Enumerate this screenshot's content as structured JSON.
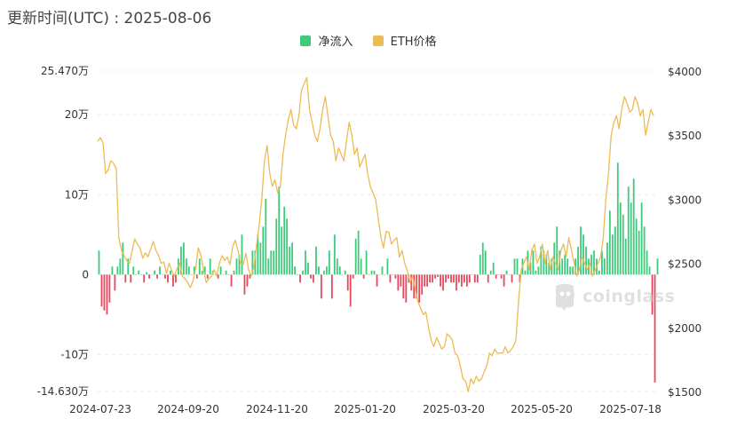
{
  "header": {
    "title": "更新时间(UTC) : 2025-08-06"
  },
  "legend": [
    {
      "label": "净流入",
      "color": "#3fc97b"
    },
    {
      "label": "ETH价格",
      "color": "#eabc55"
    }
  ],
  "watermark": {
    "text": "coinglass",
    "icon": "coinglass-logo-icon"
  },
  "colors": {
    "positive": "#3fc97b",
    "negative": "#e8485d",
    "line": "#eabc55"
  },
  "chart_data": {
    "type": "bar",
    "title": "",
    "left_axis": {
      "min": -14.63,
      "max": 25.47,
      "ticks": [
        "25.470万",
        "20万",
        "10万",
        "0",
        "-10万",
        "-14.630万"
      ],
      "tick_values": [
        25.47,
        20,
        10,
        0,
        -10,
        -14.63
      ]
    },
    "right_axis": {
      "min": 1500,
      "max": 4000,
      "ticks": [
        "$4000",
        "$3500",
        "$3000",
        "$2500",
        "$2000",
        "$1500"
      ],
      "tick_values": [
        4000,
        3500,
        3000,
        2500,
        2000,
        1500
      ]
    },
    "x_ticks": [
      "2024-07-23",
      "2024-09-20",
      "2024-11-20",
      "2025-01-20",
      "2025-03-20",
      "2025-05-20",
      "2025-07-18"
    ],
    "grid": true,
    "legend_position": "top-center",
    "series": [
      {
        "name": "净流入",
        "kind": "bar",
        "values": [
          3,
          -4,
          -4.5,
          -5,
          -3.5,
          1,
          -2,
          1,
          2,
          4,
          -1,
          2,
          -1,
          1,
          0,
          0.5,
          0,
          -1,
          0.3,
          -0.5,
          0,
          0.5,
          -0.5,
          1,
          0,
          -0.5,
          -1,
          0.5,
          -1.5,
          -1,
          2,
          3.5,
          4,
          2,
          1,
          0,
          1,
          -0.5,
          2,
          0.5,
          1,
          -0.5,
          2,
          0.5,
          0,
          -0.5,
          1,
          0,
          0.5,
          0,
          -1.5,
          0.5,
          2,
          2.5,
          5,
          -2.5,
          -1.5,
          -0.5,
          3,
          3,
          5,
          4,
          6,
          9.5,
          2,
          3,
          3,
          7,
          11,
          6,
          8.5,
          7,
          3.5,
          4,
          1,
          0,
          -1,
          0.5,
          3,
          1.5,
          -0.5,
          -1,
          3.5,
          1,
          -3,
          0.5,
          1,
          3,
          -3,
          5,
          2,
          1,
          0,
          0.5,
          -2,
          -4,
          -0.5,
          4.5,
          5.5,
          2,
          -0.5,
          3,
          0,
          0.5,
          0.5,
          -1.5,
          0,
          1,
          0,
          2,
          -1,
          0,
          -0.5,
          -2,
          -1.5,
          -3,
          -3.5,
          -1,
          -2,
          -3,
          -3,
          -3.5,
          -2.5,
          -1.5,
          -1.5,
          -1,
          -1,
          -0.5,
          -0.3,
          -1.5,
          -2,
          -1,
          -0.5,
          -1,
          -1,
          -2,
          -1,
          -1.5,
          -1,
          -1.5,
          -1,
          0,
          -1,
          -1,
          2.5,
          4,
          3,
          -1,
          0.5,
          1.5,
          -0.5,
          0,
          -0.5,
          -1.5,
          0.5,
          0,
          -1,
          2,
          2,
          -1,
          2,
          0.5,
          3,
          1.5,
          3,
          0.5,
          1,
          3.5,
          3,
          2.5,
          1.5,
          2,
          4,
          6,
          3,
          2,
          2.5,
          2,
          1,
          1,
          2,
          3.5,
          6,
          5,
          3.5,
          2,
          2.5,
          3,
          2,
          0.5,
          3,
          2,
          4,
          8,
          5,
          6,
          14,
          9,
          7.5,
          4.5,
          11,
          9,
          12,
          7,
          5.5,
          9,
          6,
          3,
          1,
          -5,
          -13.5,
          2
        ]
      },
      {
        "name": "ETH价格",
        "kind": "line",
        "values": [
          3450,
          3480,
          3440,
          3200,
          3230,
          3300,
          3280,
          3240,
          2700,
          2600,
          2560,
          2520,
          2500,
          2600,
          2690,
          2650,
          2620,
          2540,
          2580,
          2550,
          2610,
          2670,
          2600,
          2560,
          2500,
          2510,
          2420,
          2500,
          2440,
          2400,
          2460,
          2500,
          2400,
          2380,
          2350,
          2310,
          2360,
          2460,
          2620,
          2560,
          2450,
          2350,
          2380,
          2400,
          2450,
          2400,
          2500,
          2560,
          2520,
          2550,
          2490,
          2630,
          2680,
          2600,
          2500,
          2490,
          2580,
          2450,
          2400,
          2470,
          2640,
          2790,
          3000,
          3300,
          3420,
          3200,
          3100,
          3150,
          3050,
          3100,
          3350,
          3500,
          3620,
          3700,
          3580,
          3550,
          3650,
          3850,
          3900,
          3950,
          3700,
          3600,
          3500,
          3450,
          3550,
          3700,
          3800,
          3650,
          3500,
          3450,
          3300,
          3400,
          3350,
          3300,
          3450,
          3600,
          3500,
          3350,
          3400,
          3250,
          3300,
          3350,
          3200,
          3100,
          3050,
          3000,
          2850,
          2700,
          2620,
          2750,
          2740,
          2650,
          2680,
          2700,
          2550,
          2600,
          2500,
          2440,
          2350,
          2400,
          2300,
          2200,
          2150,
          2100,
          2120,
          2000,
          1900,
          1850,
          1920,
          1880,
          1830,
          1850,
          1950,
          1930,
          1900,
          1800,
          1780,
          1700,
          1600,
          1580,
          1500,
          1600,
          1560,
          1620,
          1580,
          1600,
          1650,
          1700,
          1800,
          1780,
          1830,
          1800,
          1800,
          1800,
          1850,
          1800,
          1820,
          1850,
          1900,
          2200,
          2450,
          2500,
          2550,
          2450,
          2600,
          2650,
          2500,
          2550,
          2650,
          2500,
          2600,
          2450,
          2550,
          2500,
          2450,
          2600,
          2650,
          2550,
          2700,
          2600,
          2500,
          2400,
          2450,
          2550,
          2500,
          2450,
          2500,
          2400,
          2450,
          2500,
          2550,
          2700,
          3000,
          3200,
          3500,
          3600,
          3650,
          3550,
          3700,
          3800,
          3750,
          3680,
          3700,
          3800,
          3750,
          3650,
          3700,
          3500,
          3600,
          3700,
          3650
        ]
      }
    ]
  }
}
